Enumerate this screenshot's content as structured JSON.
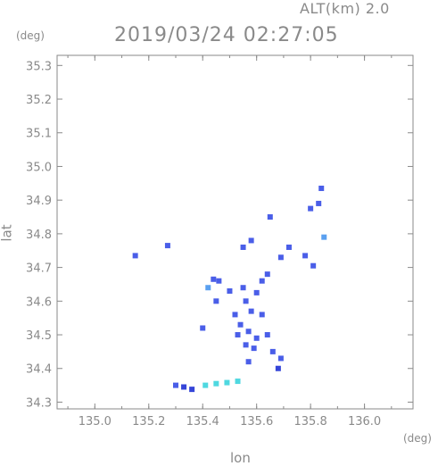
{
  "header": {
    "altitude_label": "ALT(km) 2.0",
    "timestamp": "2019/03/24 02:27:05",
    "y_unit": "(deg)",
    "x_unit": "(deg)"
  },
  "chart_data": {
    "type": "scatter",
    "title": "2019/03/24 02:27:05",
    "subtitle": "ALT(km) 2.0",
    "xlabel": "lon",
    "ylabel": "lat",
    "x_unit": "(deg)",
    "y_unit": "(deg)",
    "xlim": [
      134.86,
      136.18
    ],
    "ylim": [
      34.28,
      35.33
    ],
    "x_ticks": [
      "135.0",
      "135.2",
      "135.4",
      "135.6",
      "135.8",
      "136.0"
    ],
    "y_ticks": [
      "34.3",
      "34.4",
      "34.5",
      "34.6",
      "34.7",
      "34.8",
      "34.9",
      "35.0",
      "35.1",
      "35.2",
      "35.3"
    ],
    "grid": false,
    "colors": {
      "echo_main": "#4a5ee8",
      "echo_dark": "#3545d8",
      "echo_light": "#5aa0f0",
      "echo_cyan": "#4fd8e0",
      "axis": "#8a8a8a"
    },
    "points": [
      {
        "lon": 135.8,
        "lat": 34.875,
        "color": "echo_main"
      },
      {
        "lon": 135.83,
        "lat": 34.89,
        "color": "echo_main"
      },
      {
        "lon": 135.84,
        "lat": 34.935,
        "color": "echo_main"
      },
      {
        "lon": 135.85,
        "lat": 34.79,
        "color": "echo_light"
      },
      {
        "lon": 135.58,
        "lat": 34.78,
        "color": "echo_main"
      },
      {
        "lon": 135.72,
        "lat": 34.76,
        "color": "echo_main"
      },
      {
        "lon": 135.65,
        "lat": 34.85,
        "color": "echo_main"
      },
      {
        "lon": 135.27,
        "lat": 34.765,
        "color": "echo_main"
      },
      {
        "lon": 135.15,
        "lat": 34.735,
        "color": "echo_main"
      },
      {
        "lon": 135.78,
        "lat": 34.735,
        "color": "echo_main"
      },
      {
        "lon": 135.69,
        "lat": 34.73,
        "color": "echo_main"
      },
      {
        "lon": 135.55,
        "lat": 34.76,
        "color": "echo_main"
      },
      {
        "lon": 135.81,
        "lat": 34.705,
        "color": "echo_main"
      },
      {
        "lon": 135.44,
        "lat": 34.665,
        "color": "echo_main"
      },
      {
        "lon": 135.46,
        "lat": 34.66,
        "color": "echo_main"
      },
      {
        "lon": 135.42,
        "lat": 34.64,
        "color": "echo_light"
      },
      {
        "lon": 135.5,
        "lat": 34.63,
        "color": "echo_main"
      },
      {
        "lon": 135.55,
        "lat": 34.64,
        "color": "echo_main"
      },
      {
        "lon": 135.62,
        "lat": 34.66,
        "color": "echo_main"
      },
      {
        "lon": 135.6,
        "lat": 34.625,
        "color": "echo_main"
      },
      {
        "lon": 135.64,
        "lat": 34.68,
        "color": "echo_main"
      },
      {
        "lon": 135.56,
        "lat": 34.6,
        "color": "echo_main"
      },
      {
        "lon": 135.58,
        "lat": 34.57,
        "color": "echo_main"
      },
      {
        "lon": 135.62,
        "lat": 34.56,
        "color": "echo_main"
      },
      {
        "lon": 135.52,
        "lat": 34.56,
        "color": "echo_main"
      },
      {
        "lon": 135.54,
        "lat": 34.53,
        "color": "echo_main"
      },
      {
        "lon": 135.57,
        "lat": 34.51,
        "color": "echo_main"
      },
      {
        "lon": 135.6,
        "lat": 34.49,
        "color": "echo_main"
      },
      {
        "lon": 135.53,
        "lat": 34.5,
        "color": "echo_main"
      },
      {
        "lon": 135.64,
        "lat": 34.5,
        "color": "echo_main"
      },
      {
        "lon": 135.56,
        "lat": 34.47,
        "color": "echo_main"
      },
      {
        "lon": 135.59,
        "lat": 34.46,
        "color": "echo_main"
      },
      {
        "lon": 135.66,
        "lat": 34.45,
        "color": "echo_main"
      },
      {
        "lon": 135.45,
        "lat": 34.6,
        "color": "echo_main"
      },
      {
        "lon": 135.4,
        "lat": 34.52,
        "color": "echo_main"
      },
      {
        "lon": 135.57,
        "lat": 34.42,
        "color": "echo_main"
      },
      {
        "lon": 135.69,
        "lat": 34.43,
        "color": "echo_main"
      },
      {
        "lon": 135.68,
        "lat": 34.4,
        "color": "echo_dark"
      },
      {
        "lon": 135.33,
        "lat": 34.345,
        "color": "echo_dark"
      },
      {
        "lon": 135.36,
        "lat": 34.338,
        "color": "echo_dark"
      },
      {
        "lon": 135.3,
        "lat": 34.35,
        "color": "echo_main"
      },
      {
        "lon": 135.41,
        "lat": 34.35,
        "color": "echo_cyan"
      },
      {
        "lon": 135.45,
        "lat": 34.355,
        "color": "echo_cyan"
      },
      {
        "lon": 135.49,
        "lat": 34.358,
        "color": "echo_cyan"
      },
      {
        "lon": 135.53,
        "lat": 34.362,
        "color": "echo_cyan"
      }
    ]
  }
}
